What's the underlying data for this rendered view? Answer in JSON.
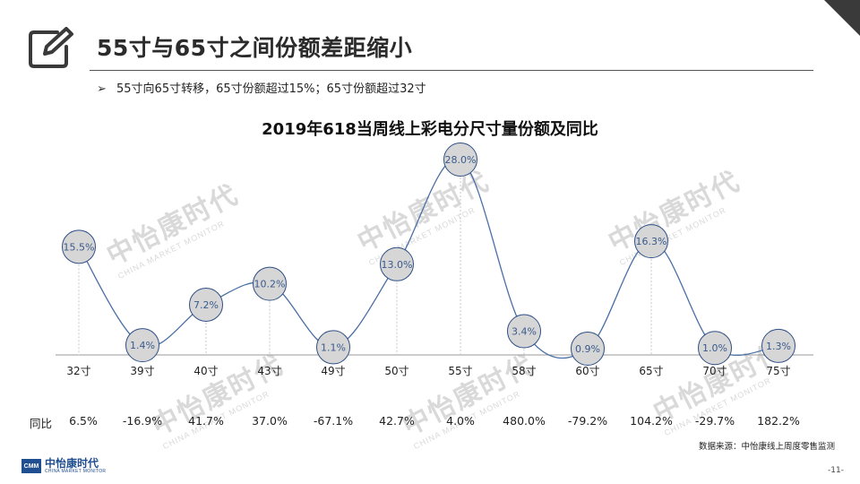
{
  "header": {
    "title": "55寸与65寸之间份额差距缩小",
    "bullet_mark": "➢",
    "bullet_text": "55寸向65寸转移，65寸份额超过15%；65寸份额超过32寸"
  },
  "watermark": {
    "cn": "中怡康时代",
    "en": "CHINA MARKET MONITOR"
  },
  "chart_data": {
    "type": "line",
    "title": "2019年618当周线上彩电分尺寸量份额及同比",
    "categories": [
      "32寸",
      "39寸",
      "40寸",
      "43寸",
      "49寸",
      "50寸",
      "55寸",
      "58寸",
      "60寸",
      "65寸",
      "70寸",
      "75寸"
    ],
    "series": [
      {
        "values": [
          15.5,
          1.4,
          7.2,
          10.2,
          1.1,
          13.0,
          28.0,
          3.4,
          0.9,
          16.3,
          1.0,
          1.3
        ],
        "labels": [
          "15.5%",
          "1.4%",
          "7.2%",
          "10.2%",
          "1.1%",
          "13.0%",
          "28.0%",
          "3.4%",
          "0.9%",
          "16.3%",
          "1.0%",
          "1.3%"
        ]
      }
    ],
    "yoy_label": "同比",
    "yoy": [
      "6.5%",
      "-16.9%",
      "41.7%",
      "37.0%",
      "-67.1%",
      "42.7%",
      "4.0%",
      "480.0%",
      "-79.2%",
      "104.2%",
      "-29.7%",
      "182.2%"
    ],
    "ylim": [
      0,
      28
    ],
    "grid": false,
    "colors": {
      "line": "#4a6fa5",
      "marker_fill": "#d6d6d6",
      "marker_stroke": "#2e4f86"
    }
  },
  "footer": {
    "source": "数据来源：中怡康线上周度零售监测",
    "logo_mark": "CMM",
    "logo_cn": "中怡康时代",
    "logo_en": "CHINA MARKET MONITOR",
    "page": "-11-"
  }
}
